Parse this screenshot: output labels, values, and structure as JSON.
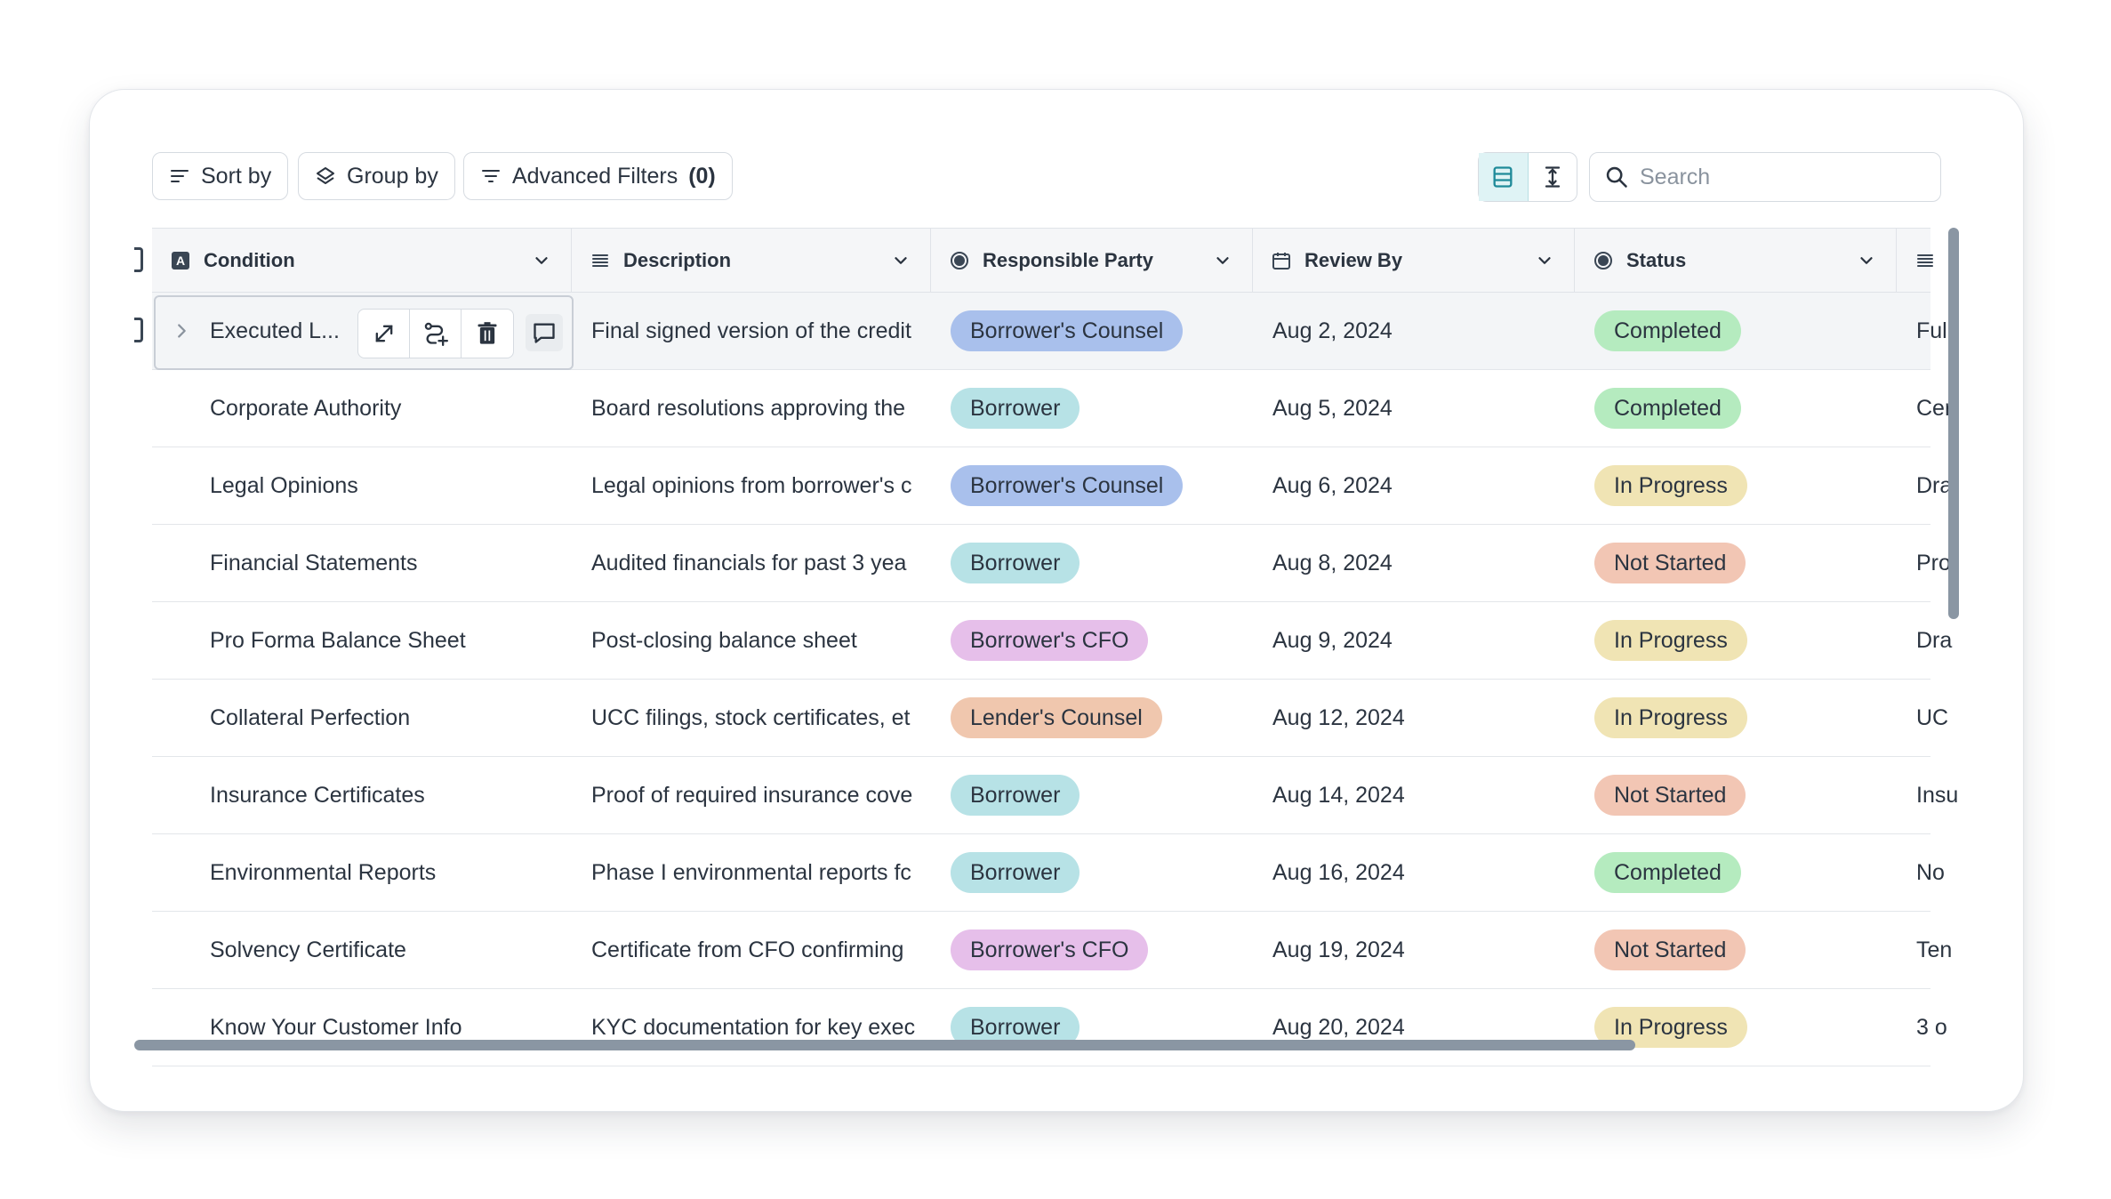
{
  "toolbar": {
    "sort_label": "Sort by",
    "group_label": "Group by",
    "filters_label": "Advanced Filters",
    "filters_count": "(0)",
    "search_placeholder": "Search"
  },
  "columns": [
    {
      "label": "Condition",
      "icon": "text-type-icon"
    },
    {
      "label": "Description",
      "icon": "lines-icon"
    },
    {
      "label": "Responsible Party",
      "icon": "radio-icon"
    },
    {
      "label": "Review By",
      "icon": "calendar-icon"
    },
    {
      "label": "Status",
      "icon": "radio-icon"
    }
  ],
  "rows": [
    {
      "condition": "Executed L...",
      "description": "Final signed version of the credit",
      "party": "Borrower's Counsel",
      "review": "Aug 2, 2024",
      "status": "Completed",
      "notes": "Full"
    },
    {
      "condition": "Corporate Authority",
      "description": "Board resolutions approving the",
      "party": "Borrower",
      "review": "Aug 5, 2024",
      "status": "Completed",
      "notes": "Cer"
    },
    {
      "condition": "Legal Opinions",
      "description": "Legal opinions from borrower's c",
      "party": "Borrower's Counsel",
      "review": "Aug 6, 2024",
      "status": "In Progress",
      "notes": "Dra"
    },
    {
      "condition": "Financial Statements",
      "description": "Audited financials for past 3 yea",
      "party": "Borrower",
      "review": "Aug 8, 2024",
      "status": "Not Started",
      "notes": "Pro"
    },
    {
      "condition": "Pro Forma Balance Sheet",
      "description": "Post-closing balance sheet",
      "party": "Borrower's CFO",
      "review": "Aug 9, 2024",
      "status": "In Progress",
      "notes": "Dra"
    },
    {
      "condition": "Collateral Perfection",
      "description": "UCC filings, stock certificates, et",
      "party": "Lender's Counsel",
      "review": "Aug 12, 2024",
      "status": "In Progress",
      "notes": "UC"
    },
    {
      "condition": "Insurance Certificates",
      "description": "Proof of required insurance cove",
      "party": "Borrower",
      "review": "Aug 14, 2024",
      "status": "Not Started",
      "notes": "Insu"
    },
    {
      "condition": "Environmental Reports",
      "description": "Phase I environmental reports fc",
      "party": "Borrower",
      "review": "Aug 16, 2024",
      "status": "Completed",
      "notes": "No"
    },
    {
      "condition": "Solvency Certificate",
      "description": "Certificate from CFO confirming",
      "party": "Borrower's CFO",
      "review": "Aug 19, 2024",
      "status": "Not Started",
      "notes": "Ten"
    },
    {
      "condition": "Know Your Customer Info",
      "description": "KYC documentation for key exec",
      "party": "Borrower",
      "review": "Aug 20, 2024",
      "status": "In Progress",
      "notes": "3 o"
    }
  ],
  "colors": {
    "Borrower's Counsel": "#a9c0ec",
    "Borrower": "#b7e2e6",
    "Borrower's CFO": "#e6bfea",
    "Lender's Counsel": "#f0c7ae",
    "Completed": "#b5ebbf",
    "In Progress": "#f0e4b4",
    "Not Started": "#f2c6b4"
  }
}
